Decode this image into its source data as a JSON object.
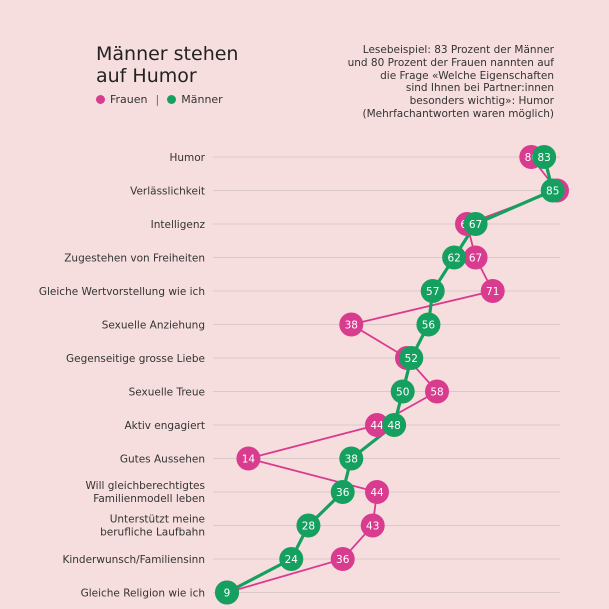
{
  "header": {
    "title_line1": "Männer stehen",
    "title_line2": "auf Humor",
    "note_lines": [
      "Lesebeispiel: 83 Prozent der Männer",
      "und 80 Prozent der Frauen nannten auf",
      "die Frage «Welche Eigenschaften",
      "sind Ihnen bei Partner:innen",
      "besonders wichtig»: Humor",
      "(Mehrfachantworten waren möglich)"
    ]
  },
  "legend": {
    "women_label": "Frauen",
    "separator": "|",
    "men_label": "Männer"
  },
  "colors": {
    "background": "#f7dede",
    "women": "#d93b8f",
    "men": "#16a060",
    "gridline": "#cfc2c2"
  },
  "chart_data": {
    "type": "dot-line",
    "categories": [
      "Humor",
      "Verlässlichkeit",
      "Intelligenz",
      "Zugestehen von Freiheiten",
      "Gleiche Wertvorstellung wie ich",
      "Sexuelle Anziehung",
      "Gegenseitige grosse Liebe",
      "Sexuelle Treue",
      "Aktiv engagiert",
      "Gutes Aussehen",
      "Will gleichberechtigtes\nFamilienmodell leben",
      "Unterstützt meine\nberufliche Laufbahn",
      "Kinderwunsch/Familiensinn",
      "Gleiche Religion wie ich"
    ],
    "series": [
      {
        "name": "Frauen",
        "values": [
          80,
          86,
          65,
          67,
          71,
          38,
          51,
          58,
          44,
          14,
          44,
          43,
          36,
          9
        ]
      },
      {
        "name": "Männer",
        "values": [
          83,
          85,
          67,
          62,
          57,
          56,
          52,
          50,
          48,
          38,
          36,
          28,
          24,
          9
        ]
      }
    ],
    "unit": "Prozent"
  }
}
